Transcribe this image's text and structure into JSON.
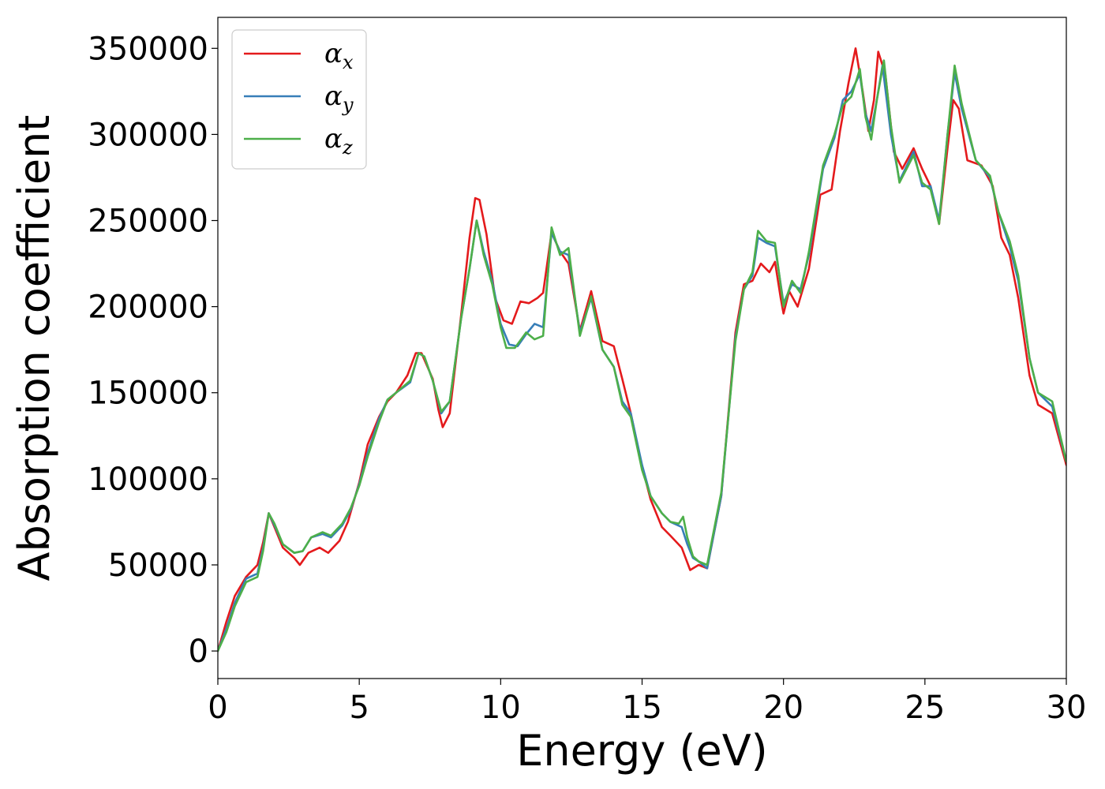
{
  "chart_data": {
    "type": "line",
    "xlabel": "Energy (eV)",
    "ylabel": "Absorption coefficient",
    "xlim": [
      0,
      30
    ],
    "ylim": [
      -16000,
      368000
    ],
    "xticks": [
      0,
      5,
      10,
      15,
      20,
      25,
      30
    ],
    "yticks": [
      0,
      50000,
      100000,
      150000,
      200000,
      250000,
      300000,
      350000
    ],
    "grid": false,
    "legend_position": "top-left",
    "series": [
      {
        "name": "αx",
        "symbol": "α",
        "subscript": "x",
        "color": "#e41a1c",
        "points": [
          [
            0,
            0
          ],
          [
            0.3,
            17000
          ],
          [
            0.6,
            32000
          ],
          [
            1.0,
            43000
          ],
          [
            1.4,
            50000
          ],
          [
            1.6,
            63000
          ],
          [
            1.8,
            80000
          ],
          [
            2.0,
            72000
          ],
          [
            2.3,
            60000
          ],
          [
            2.7,
            54000
          ],
          [
            2.9,
            50000
          ],
          [
            3.2,
            57000
          ],
          [
            3.6,
            60000
          ],
          [
            3.9,
            57000
          ],
          [
            4.3,
            64000
          ],
          [
            4.6,
            75000
          ],
          [
            5.0,
            98000
          ],
          [
            5.3,
            120000
          ],
          [
            5.7,
            136000
          ],
          [
            6.0,
            145000
          ],
          [
            6.3,
            150000
          ],
          [
            6.7,
            160000
          ],
          [
            7.0,
            173000
          ],
          [
            7.2,
            173000
          ],
          [
            7.6,
            158000
          ],
          [
            7.8,
            140000
          ],
          [
            7.95,
            130000
          ],
          [
            8.2,
            138000
          ],
          [
            8.6,
            195000
          ],
          [
            8.9,
            240000
          ],
          [
            9.1,
            263000
          ],
          [
            9.25,
            262000
          ],
          [
            9.5,
            242000
          ],
          [
            9.8,
            205000
          ],
          [
            10.1,
            192000
          ],
          [
            10.4,
            190000
          ],
          [
            10.7,
            203000
          ],
          [
            11.0,
            202000
          ],
          [
            11.3,
            205000
          ],
          [
            11.5,
            208000
          ],
          [
            11.8,
            243000
          ],
          [
            12.1,
            232000
          ],
          [
            12.4,
            225000
          ],
          [
            12.8,
            186000
          ],
          [
            13.2,
            209000
          ],
          [
            13.6,
            180000
          ],
          [
            14.0,
            177000
          ],
          [
            14.3,
            158000
          ],
          [
            14.6,
            138000
          ],
          [
            15.0,
            107000
          ],
          [
            15.3,
            88000
          ],
          [
            15.7,
            72000
          ],
          [
            16.0,
            67000
          ],
          [
            16.4,
            60000
          ],
          [
            16.7,
            47000
          ],
          [
            17.0,
            50000
          ],
          [
            17.3,
            48000
          ],
          [
            17.8,
            90000
          ],
          [
            18.3,
            185000
          ],
          [
            18.6,
            213000
          ],
          [
            18.9,
            215000
          ],
          [
            19.2,
            225000
          ],
          [
            19.5,
            220000
          ],
          [
            19.7,
            226000
          ],
          [
            19.9,
            205000
          ],
          [
            20.0,
            196000
          ],
          [
            20.2,
            209000
          ],
          [
            20.5,
            200000
          ],
          [
            20.9,
            222000
          ],
          [
            21.3,
            265000
          ],
          [
            21.7,
            268000
          ],
          [
            22.0,
            302000
          ],
          [
            22.3,
            330000
          ],
          [
            22.55,
            350000
          ],
          [
            22.8,
            325000
          ],
          [
            23.0,
            302000
          ],
          [
            23.2,
            320000
          ],
          [
            23.35,
            348000
          ],
          [
            23.6,
            335000
          ],
          [
            23.9,
            290000
          ],
          [
            24.2,
            280000
          ],
          [
            24.6,
            292000
          ],
          [
            24.9,
            280000
          ],
          [
            25.2,
            270000
          ],
          [
            25.5,
            248000
          ],
          [
            25.8,
            292000
          ],
          [
            26.0,
            320000
          ],
          [
            26.2,
            315000
          ],
          [
            26.5,
            285000
          ],
          [
            27.0,
            282000
          ],
          [
            27.4,
            270000
          ],
          [
            27.7,
            240000
          ],
          [
            28.0,
            230000
          ],
          [
            28.3,
            205000
          ],
          [
            28.7,
            160000
          ],
          [
            29.0,
            143000
          ],
          [
            29.5,
            138000
          ],
          [
            30.0,
            108000
          ]
        ]
      },
      {
        "name": "αy",
        "symbol": "α",
        "subscript": "y",
        "color": "#377eb8",
        "points": [
          [
            0,
            0
          ],
          [
            0.3,
            13000
          ],
          [
            0.6,
            28000
          ],
          [
            1.0,
            42000
          ],
          [
            1.4,
            45000
          ],
          [
            1.6,
            60000
          ],
          [
            1.8,
            80000
          ],
          [
            2.0,
            73000
          ],
          [
            2.3,
            62000
          ],
          [
            2.7,
            57000
          ],
          [
            3.0,
            58000
          ],
          [
            3.3,
            66000
          ],
          [
            3.7,
            68000
          ],
          [
            4.0,
            66000
          ],
          [
            4.4,
            73000
          ],
          [
            4.7,
            82000
          ],
          [
            5.0,
            97000
          ],
          [
            5.3,
            115000
          ],
          [
            5.7,
            135000
          ],
          [
            6.0,
            146000
          ],
          [
            6.3,
            150000
          ],
          [
            6.8,
            156000
          ],
          [
            7.1,
            173000
          ],
          [
            7.3,
            171000
          ],
          [
            7.6,
            157000
          ],
          [
            7.9,
            138000
          ],
          [
            8.2,
            145000
          ],
          [
            8.6,
            193000
          ],
          [
            8.9,
            222000
          ],
          [
            9.15,
            250000
          ],
          [
            9.4,
            232000
          ],
          [
            9.7,
            215000
          ],
          [
            10.0,
            190000
          ],
          [
            10.3,
            178000
          ],
          [
            10.6,
            177000
          ],
          [
            10.9,
            184000
          ],
          [
            11.2,
            190000
          ],
          [
            11.5,
            188000
          ],
          [
            11.8,
            243000
          ],
          [
            12.1,
            232000
          ],
          [
            12.4,
            230000
          ],
          [
            12.8,
            185000
          ],
          [
            13.2,
            205000
          ],
          [
            13.6,
            175000
          ],
          [
            14.0,
            165000
          ],
          [
            14.3,
            145000
          ],
          [
            14.6,
            138000
          ],
          [
            15.0,
            108000
          ],
          [
            15.3,
            90000
          ],
          [
            15.7,
            80000
          ],
          [
            16.0,
            75000
          ],
          [
            16.4,
            72000
          ],
          [
            16.6,
            62000
          ],
          [
            16.8,
            54000
          ],
          [
            17.0,
            52000
          ],
          [
            17.3,
            48000
          ],
          [
            17.8,
            90000
          ],
          [
            18.3,
            182000
          ],
          [
            18.6,
            210000
          ],
          [
            18.9,
            218000
          ],
          [
            19.1,
            240000
          ],
          [
            19.4,
            237000
          ],
          [
            19.7,
            235000
          ],
          [
            20.0,
            202000
          ],
          [
            20.3,
            213000
          ],
          [
            20.6,
            210000
          ],
          [
            20.9,
            230000
          ],
          [
            21.4,
            280000
          ],
          [
            21.8,
            298000
          ],
          [
            22.1,
            320000
          ],
          [
            22.4,
            325000
          ],
          [
            22.7,
            335000
          ],
          [
            22.9,
            312000
          ],
          [
            23.1,
            302000
          ],
          [
            23.3,
            320000
          ],
          [
            23.5,
            340000
          ],
          [
            23.8,
            300000
          ],
          [
            24.1,
            273000
          ],
          [
            24.6,
            290000
          ],
          [
            24.9,
            270000
          ],
          [
            25.2,
            270000
          ],
          [
            25.5,
            250000
          ],
          [
            25.8,
            300000
          ],
          [
            26.05,
            336000
          ],
          [
            26.3,
            315000
          ],
          [
            26.8,
            285000
          ],
          [
            27.3,
            275000
          ],
          [
            27.6,
            255000
          ],
          [
            28.0,
            235000
          ],
          [
            28.3,
            215000
          ],
          [
            28.7,
            170000
          ],
          [
            29.0,
            150000
          ],
          [
            29.5,
            142000
          ],
          [
            30.0,
            110000
          ]
        ]
      },
      {
        "name": "αz",
        "symbol": "α",
        "subscript": "z",
        "color": "#4daf4a",
        "points": [
          [
            0,
            0
          ],
          [
            0.3,
            11000
          ],
          [
            0.6,
            26000
          ],
          [
            1.0,
            40000
          ],
          [
            1.4,
            43000
          ],
          [
            1.6,
            58000
          ],
          [
            1.8,
            80000
          ],
          [
            2.0,
            74000
          ],
          [
            2.3,
            62000
          ],
          [
            2.7,
            57000
          ],
          [
            3.0,
            58000
          ],
          [
            3.3,
            66000
          ],
          [
            3.7,
            69000
          ],
          [
            4.0,
            67000
          ],
          [
            4.4,
            74000
          ],
          [
            4.7,
            83000
          ],
          [
            5.0,
            96000
          ],
          [
            5.3,
            113000
          ],
          [
            5.7,
            133000
          ],
          [
            6.0,
            146000
          ],
          [
            6.3,
            150000
          ],
          [
            6.8,
            157000
          ],
          [
            7.1,
            173000
          ],
          [
            7.3,
            171000
          ],
          [
            7.6,
            157000
          ],
          [
            7.9,
            139000
          ],
          [
            8.2,
            145000
          ],
          [
            8.6,
            193000
          ],
          [
            8.9,
            222000
          ],
          [
            9.15,
            250000
          ],
          [
            9.4,
            230000
          ],
          [
            9.7,
            213000
          ],
          [
            10.0,
            188000
          ],
          [
            10.2,
            176000
          ],
          [
            10.5,
            176000
          ],
          [
            10.9,
            185000
          ],
          [
            11.2,
            181000
          ],
          [
            11.5,
            183000
          ],
          [
            11.8,
            246000
          ],
          [
            12.1,
            230000
          ],
          [
            12.4,
            234000
          ],
          [
            12.8,
            183000
          ],
          [
            13.2,
            206000
          ],
          [
            13.6,
            175000
          ],
          [
            14.0,
            165000
          ],
          [
            14.3,
            143000
          ],
          [
            14.6,
            136000
          ],
          [
            15.0,
            105000
          ],
          [
            15.3,
            90000
          ],
          [
            15.7,
            80000
          ],
          [
            16.0,
            75000
          ],
          [
            16.3,
            74000
          ],
          [
            16.45,
            78000
          ],
          [
            16.6,
            66000
          ],
          [
            16.8,
            55000
          ],
          [
            17.0,
            52000
          ],
          [
            17.3,
            50000
          ],
          [
            17.8,
            92000
          ],
          [
            18.3,
            180000
          ],
          [
            18.6,
            210000
          ],
          [
            18.9,
            220000
          ],
          [
            19.1,
            244000
          ],
          [
            19.4,
            238000
          ],
          [
            19.7,
            237000
          ],
          [
            20.0,
            200000
          ],
          [
            20.3,
            215000
          ],
          [
            20.6,
            208000
          ],
          [
            20.9,
            232000
          ],
          [
            21.4,
            282000
          ],
          [
            21.8,
            300000
          ],
          [
            22.1,
            317000
          ],
          [
            22.4,
            322000
          ],
          [
            22.7,
            338000
          ],
          [
            22.9,
            310000
          ],
          [
            23.1,
            297000
          ],
          [
            23.3,
            320000
          ],
          [
            23.55,
            343000
          ],
          [
            23.8,
            305000
          ],
          [
            24.1,
            272000
          ],
          [
            24.6,
            288000
          ],
          [
            24.9,
            272000
          ],
          [
            25.2,
            268000
          ],
          [
            25.5,
            248000
          ],
          [
            25.8,
            300000
          ],
          [
            26.05,
            340000
          ],
          [
            26.3,
            318000
          ],
          [
            26.8,
            285000
          ],
          [
            27.3,
            276000
          ],
          [
            27.6,
            255000
          ],
          [
            28.0,
            238000
          ],
          [
            28.3,
            218000
          ],
          [
            28.7,
            170000
          ],
          [
            29.0,
            150000
          ],
          [
            29.5,
            145000
          ],
          [
            30.0,
            110000
          ]
        ]
      }
    ]
  }
}
